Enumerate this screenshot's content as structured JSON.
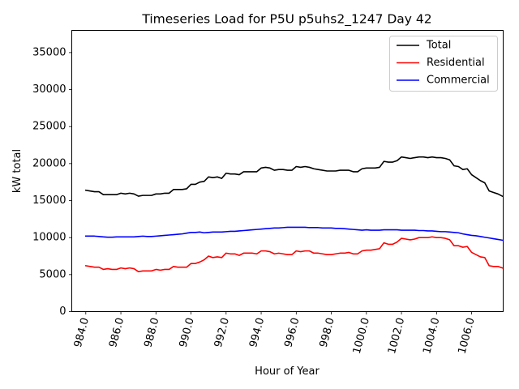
{
  "chart_data": {
    "type": "line",
    "title": "Timeseries Load for P5U p5uhs2_1247  Day 42",
    "xlabel": "Hour of Year",
    "ylabel": "kW total",
    "xlim": [
      983.2,
      1007.8
    ],
    "ylim": [
      0,
      38000
    ],
    "xticks": [
      984,
      986,
      988,
      990,
      992,
      994,
      996,
      998,
      1000,
      1002,
      1004,
      1006
    ],
    "xtick_labels": [
      "984.0",
      "986.0",
      "988.0",
      "990.0",
      "992.0",
      "994.0",
      "996.0",
      "998.0",
      "1000.0",
      "1002.0",
      "1004.0",
      "1006.0"
    ],
    "yticks": [
      0,
      5000,
      10000,
      15000,
      20000,
      25000,
      30000,
      35000
    ],
    "ytick_labels": [
      "0",
      "5000",
      "10000",
      "15000",
      "20000",
      "25000",
      "30000",
      "35000"
    ],
    "legend_position": "top-right",
    "x": [
      984,
      984.25,
      984.5,
      984.75,
      985,
      985.25,
      985.5,
      985.75,
      986,
      986.25,
      986.5,
      986.75,
      987,
      987.25,
      987.5,
      987.75,
      988,
      988.25,
      988.5,
      988.75,
      989,
      989.25,
      989.5,
      989.75,
      990,
      990.25,
      990.5,
      990.75,
      991,
      991.25,
      991.5,
      991.75,
      992,
      992.25,
      992.5,
      992.75,
      993,
      993.25,
      993.5,
      993.75,
      994,
      994.25,
      994.5,
      994.75,
      995,
      995.25,
      995.5,
      995.75,
      996,
      996.25,
      996.5,
      996.75,
      997,
      997.25,
      997.5,
      997.75,
      998,
      998.25,
      998.5,
      998.75,
      999,
      999.25,
      999.5,
      999.75,
      1000,
      1000.25,
      1000.5,
      1000.75,
      1001,
      1001.25,
      1001.5,
      1001.75,
      1002,
      1002.25,
      1002.5,
      1002.75,
      1003,
      1003.25,
      1003.5,
      1003.75,
      1004,
      1004.25,
      1004.5,
      1004.75,
      1005,
      1005.25,
      1005.5,
      1005.75,
      1006,
      1006.25,
      1006.5,
      1006.75,
      1007,
      1007.25,
      1007.5,
      1007.75
    ],
    "series": [
      {
        "name": "Total",
        "color": "#000000",
        "values": [
          16400,
          16300,
          16200,
          16200,
          15800,
          15800,
          15800,
          15800,
          16000,
          15900,
          16000,
          15900,
          15600,
          15700,
          15700,
          15700,
          15900,
          15900,
          16000,
          16000,
          16500,
          16500,
          16500,
          16600,
          17200,
          17200,
          17500,
          17600,
          18200,
          18100,
          18200,
          18000,
          18700,
          18600,
          18600,
          18500,
          18900,
          18900,
          18900,
          18900,
          19400,
          19500,
          19400,
          19100,
          19200,
          19200,
          19100,
          19100,
          19600,
          19500,
          19600,
          19500,
          19300,
          19200,
          19100,
          19000,
          19000,
          19000,
          19100,
          19100,
          19100,
          18900,
          18900,
          19300,
          19400,
          19400,
          19400,
          19500,
          20300,
          20200,
          20200,
          20400,
          20900,
          20800,
          20700,
          20800,
          20900,
          20900,
          20800,
          20900,
          20800,
          20800,
          20700,
          20500,
          19700,
          19600,
          19200,
          19300,
          18500,
          18100,
          17700,
          17400,
          16300,
          16100,
          15900,
          15600
        ]
      },
      {
        "name": "Residential",
        "color": "#ff0000",
        "values": [
          6200,
          6100,
          6000,
          6000,
          5700,
          5800,
          5700,
          5700,
          5900,
          5800,
          5900,
          5800,
          5400,
          5500,
          5500,
          5500,
          5700,
          5600,
          5700,
          5700,
          6100,
          6000,
          6000,
          6000,
          6500,
          6500,
          6700,
          7000,
          7500,
          7300,
          7400,
          7300,
          7900,
          7800,
          7800,
          7600,
          7900,
          7900,
          7900,
          7800,
          8200,
          8200,
          8100,
          7800,
          7900,
          7800,
          7700,
          7700,
          8200,
          8100,
          8200,
          8200,
          7900,
          7900,
          7800,
          7700,
          7700,
          7800,
          7900,
          7900,
          8000,
          7800,
          7800,
          8200,
          8300,
          8300,
          8400,
          8500,
          9300,
          9100,
          9100,
          9400,
          9900,
          9800,
          9700,
          9800,
          10000,
          10000,
          10000,
          10100,
          10000,
          10000,
          9900,
          9700,
          8900,
          8900,
          8700,
          8800,
          8000,
          7700,
          7400,
          7300,
          6200,
          6100,
          6100,
          5900
        ]
      },
      {
        "name": "Commercial",
        "color": "#0000ff",
        "values": [
          10200,
          10200,
          10200,
          10150,
          10100,
          10050,
          10050,
          10100,
          10100,
          10100,
          10100,
          10100,
          10150,
          10200,
          10150,
          10150,
          10200,
          10250,
          10300,
          10350,
          10400,
          10450,
          10500,
          10600,
          10700,
          10700,
          10750,
          10650,
          10700,
          10750,
          10750,
          10750,
          10800,
          10850,
          10850,
          10900,
          10950,
          11000,
          11050,
          11100,
          11150,
          11200,
          11250,
          11300,
          11300,
          11350,
          11400,
          11400,
          11400,
          11400,
          11400,
          11350,
          11350,
          11350,
          11300,
          11300,
          11300,
          11250,
          11250,
          11200,
          11150,
          11100,
          11050,
          11000,
          11050,
          11000,
          11000,
          11000,
          11050,
          11050,
          11050,
          11050,
          11000,
          11000,
          11000,
          11000,
          10950,
          10950,
          10900,
          10900,
          10850,
          10800,
          10800,
          10750,
          10700,
          10650,
          10500,
          10400,
          10300,
          10250,
          10150,
          10050,
          9950,
          9850,
          9750,
          9650
        ]
      }
    ]
  }
}
